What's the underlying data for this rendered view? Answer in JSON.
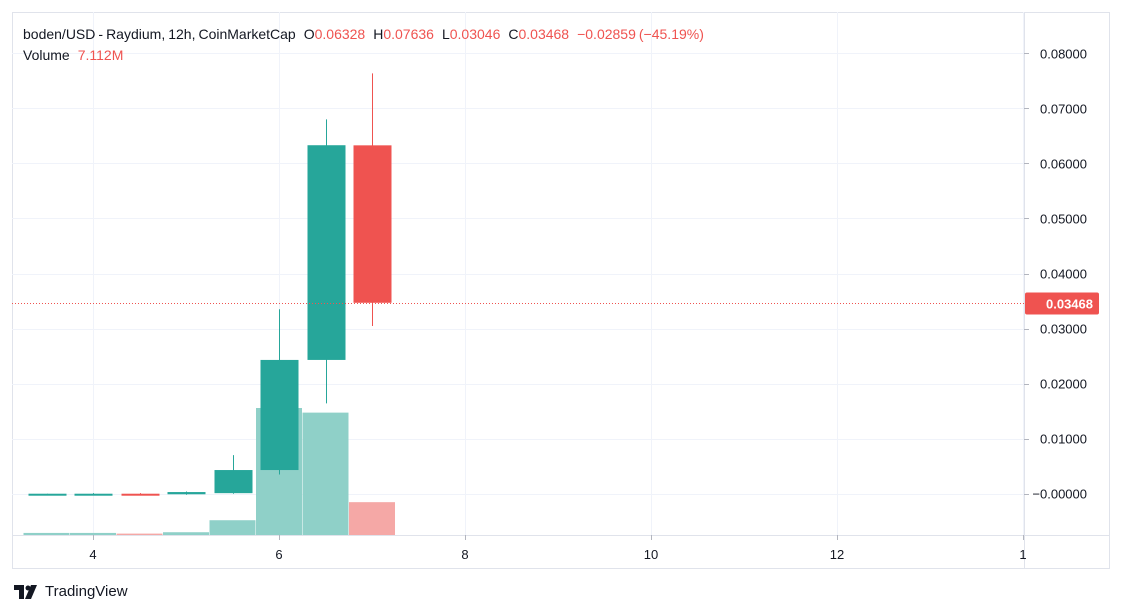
{
  "legend": {
    "symbol": "boden/USD",
    "exchange": "Raydium",
    "interval": "12h",
    "source": "CoinMarketCap",
    "open_label": "O",
    "open": "0.06328",
    "high_label": "H",
    "high": "0.07636",
    "low_label": "L",
    "low": "0.03046",
    "close_label": "C",
    "close": "0.03468",
    "change": "−0.02859",
    "change_pct": "(−45.19%)",
    "volume_label": "Volume",
    "volume": "7.112M"
  },
  "price_tag": "0.03468",
  "brand": {
    "name": "TradingView",
    "icon": "tradingview-logo-icon"
  },
  "colors": {
    "up": "#26a69a",
    "down": "#ef5350",
    "up_volume": "#8fd0c8",
    "down_volume": "#f5a8a6",
    "grid": "#f0f3fa"
  },
  "chart_data": {
    "type": "candlestick",
    "y_ticks": [
      "0.08000",
      "0.07000",
      "0.06000",
      "0.05000",
      "0.04000",
      "0.03000",
      "0.02000",
      "0.01000",
      "−0.00000"
    ],
    "x_ticks": [
      "4",
      "6",
      "8",
      "10",
      "12",
      "1"
    ],
    "ylim": [
      -0.0075,
      0.0875
    ],
    "last_price": 0.03468,
    "grid": true,
    "candles": [
      {
        "x": 3.5,
        "open": -0.0001,
        "high": 0.0,
        "low": -0.0002,
        "close": 0.0
      },
      {
        "x": 4.0,
        "open": -0.0001,
        "high": 0.0001,
        "low": -0.0002,
        "close": 0.0
      },
      {
        "x": 4.5,
        "open": 0.0,
        "high": 0.0001,
        "low": -0.0002,
        "close": -0.0001
      },
      {
        "x": 5.0,
        "open": -0.0001,
        "high": 0.0004,
        "low": -0.0002,
        "close": 0.0003
      },
      {
        "x": 5.5,
        "open": 0.0001,
        "high": 0.007,
        "low": 0.0,
        "close": 0.0043
      },
      {
        "x": 6.0,
        "open": 0.0043,
        "high": 0.0335,
        "low": 0.0035,
        "close": 0.0243
      },
      {
        "x": 6.5,
        "open": 0.0243,
        "high": 0.068,
        "low": 0.0164,
        "close": 0.0633
      },
      {
        "x": 7.0,
        "open": 0.06328,
        "high": 0.07636,
        "low": 0.03046,
        "close": 0.03468
      }
    ],
    "volume": [
      {
        "x": 3.5,
        "value": 0.45,
        "direction": "up"
      },
      {
        "x": 4.0,
        "value": 0.45,
        "direction": "up"
      },
      {
        "x": 4.5,
        "value": 0.3,
        "direction": "down"
      },
      {
        "x": 5.0,
        "value": 0.6,
        "direction": "up"
      },
      {
        "x": 5.5,
        "value": 3.2,
        "direction": "up"
      },
      {
        "x": 6.0,
        "value": 27.5,
        "direction": "up"
      },
      {
        "x": 6.5,
        "value": 26.5,
        "direction": "up"
      },
      {
        "x": 7.0,
        "value": 7.112,
        "direction": "down"
      }
    ]
  }
}
